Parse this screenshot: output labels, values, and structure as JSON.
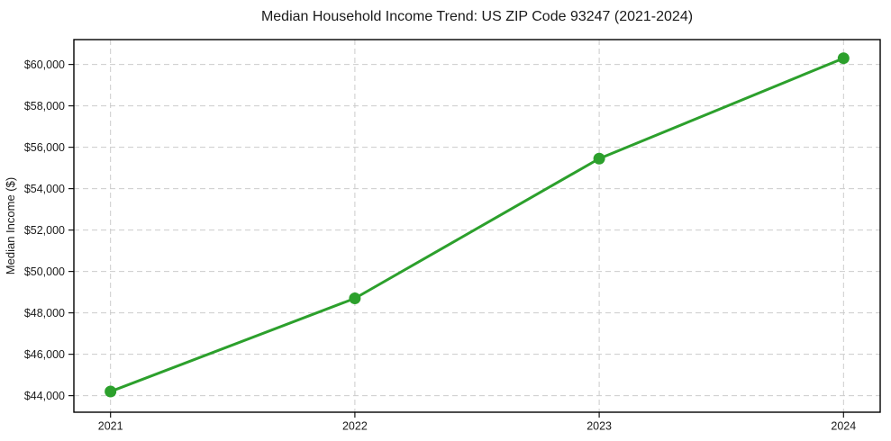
{
  "figure": {
    "title": "Median Household Income Trend: US ZIP Code 93247 (2021-2024)"
  },
  "chart_data": {
    "type": "line",
    "title": "Median Household Income Trend: US ZIP Code 93247 (2021-2024)",
    "xlabel": "",
    "ylabel": "Median Income ($)",
    "x": [
      2021,
      2022,
      2023,
      2024
    ],
    "series": [
      {
        "name": "Median household income",
        "values": [
          44200,
          48700,
          55450,
          60300
        ],
        "color": "#2ca02c",
        "marker": "circle",
        "marker_radius": 6.5,
        "line_width": 3
      }
    ],
    "xticks": [
      2021,
      2022,
      2023,
      2024
    ],
    "xtick_labels": [
      "2021",
      "2022",
      "2023",
      "2024"
    ],
    "yticks": [
      44000,
      46000,
      48000,
      50000,
      52000,
      54000,
      56000,
      58000,
      60000
    ],
    "ytick_labels": [
      "$44,000",
      "$46,000",
      "$48,000",
      "$50,000",
      "$52,000",
      "$54,000",
      "$56,000",
      "$58,000",
      "$60,000"
    ],
    "xlim": [
      2020.85,
      2024.15
    ],
    "ylim": [
      43200,
      61200
    ],
    "grid": true,
    "grid_style": "dashed",
    "grid_color": "#cccccc",
    "frame_color": "#000000",
    "legend": "none"
  }
}
